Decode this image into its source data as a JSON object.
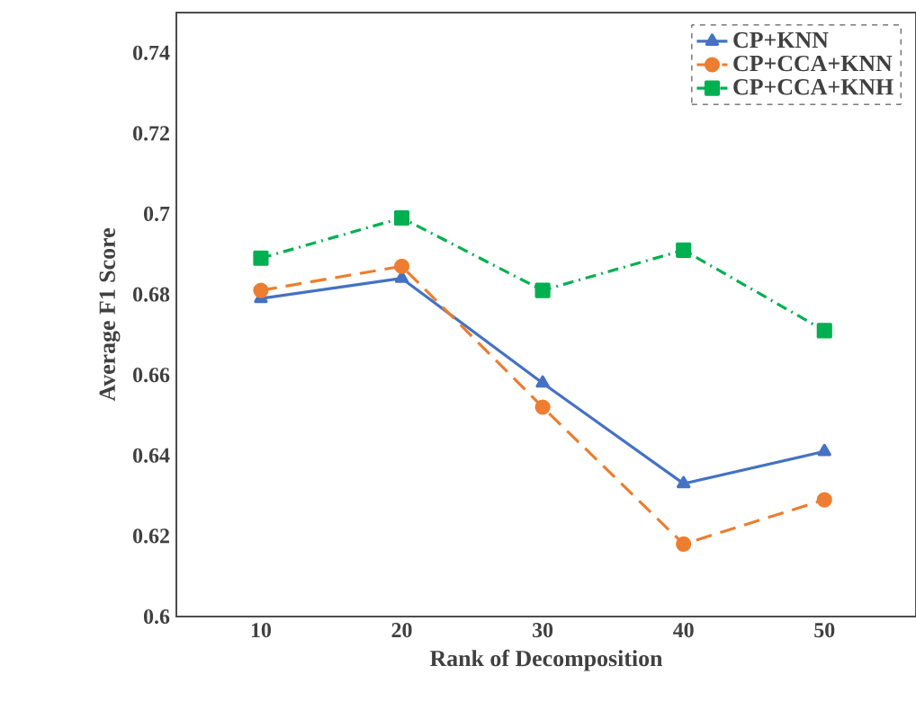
{
  "chart_data": {
    "type": "line",
    "xlabel": "Rank of Decomposition",
    "ylabel": "Average F1 Score",
    "categories": [
      "10",
      "20",
      "30",
      "40",
      "50"
    ],
    "series": [
      {
        "name": "CP+KNN",
        "color": "#4472c4",
        "marker": "triangle",
        "line_style": "solid",
        "values": [
          0.679,
          0.684,
          0.658,
          0.633,
          0.641
        ]
      },
      {
        "name": "CP+CCA+KNN",
        "color": "#ed7d31",
        "marker": "circle",
        "line_style": "dashed",
        "values": [
          0.681,
          0.687,
          0.652,
          0.618,
          0.629
        ]
      },
      {
        "name": "CP+CCA+KNH",
        "color": "#00b050",
        "marker": "square",
        "line_style": "dotted",
        "values": [
          0.689,
          0.699,
          0.681,
          0.691,
          0.671
        ]
      }
    ],
    "ylim": [
      0.6,
      0.75
    ],
    "yticks": [
      0.6,
      0.62,
      0.64,
      0.66,
      0.68,
      0.7,
      0.72,
      0.74
    ],
    "grid": false,
    "legend": "top right"
  }
}
